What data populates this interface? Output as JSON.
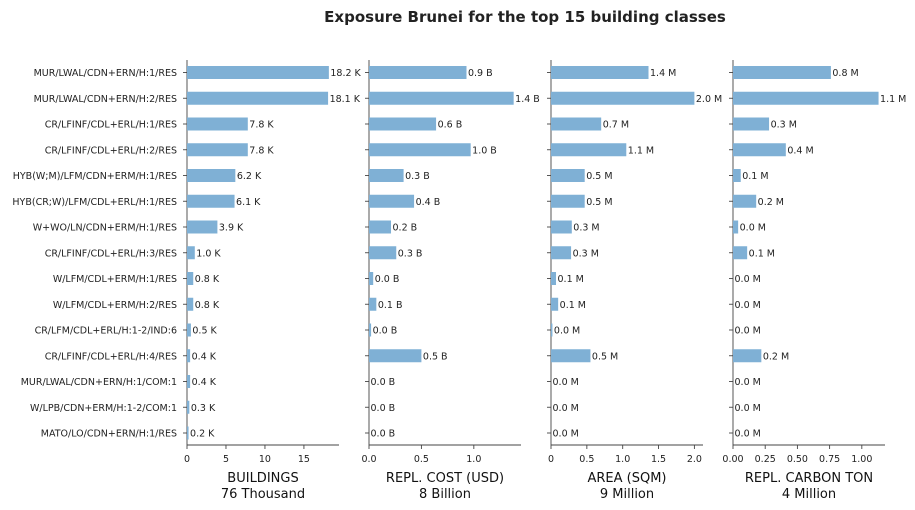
{
  "title": "Exposure Brunei for the top 15 building classes",
  "chart_data": {
    "type": "bar",
    "orientation": "horizontal",
    "title": "Exposure Brunei for the top 15 building classes",
    "categories": [
      "MUR/LWAL/CDN+ERN/H:1/RES",
      "MUR/LWAL/CDN+ERN/H:2/RES",
      "CR/LFINF/CDL+ERL/H:1/RES",
      "CR/LFINF/CDL+ERL/H:2/RES",
      "HYB(W;M)/LFM/CDN+ERM/H:1/RES",
      "HYB(CR;W)/LFM/CDL+ERL/H:1/RES",
      "W+WO/LN/CDN+ERM/H:1/RES",
      "CR/LFINF/CDL+ERL/H:3/RES",
      "W/LFM/CDL+ERM/H:1/RES",
      "W/LFM/CDL+ERM/H:2/RES",
      "CR/LFM/CDL+ERL/H:1-2/IND:6",
      "CR/LFINF/CDL+ERL/H:4/RES",
      "MUR/LWAL/CDN+ERN/H:1/COM:1",
      "W/LPB/CDN+ERM/H:1-2/COM:1",
      "MATO/LO/CDN+ERN/H:1/RES"
    ],
    "color": "#7fb0d5",
    "panels": [
      {
        "xlabel": "BUILDINGS",
        "total": "76 Thousand",
        "unit": "Thousand",
        "xlim": [
          0,
          19.5
        ],
        "ticks": [
          0,
          5,
          10,
          15
        ],
        "tick_labels": [
          "0",
          "5",
          "10",
          "15"
        ],
        "values": [
          18.2,
          18.1,
          7.8,
          7.8,
          6.2,
          6.1,
          3.9,
          1.0,
          0.8,
          0.8,
          0.5,
          0.4,
          0.4,
          0.3,
          0.2
        ],
        "labels": [
          "18.2 K",
          "18.1 K",
          "7.8 K",
          "7.8 K",
          "6.2 K",
          "6.1 K",
          "3.9 K",
          "1.0 K",
          "0.8 K",
          "0.8 K",
          "0.5 K",
          "0.4 K",
          "0.4 K",
          "0.3 K",
          "0.2 K"
        ]
      },
      {
        "xlabel": "REPL. COST (USD)",
        "total": "8 Billion",
        "unit": "Billion",
        "xlim": [
          0,
          1.45
        ],
        "ticks": [
          0,
          0.5,
          1.0
        ],
        "tick_labels": [
          "0.0",
          "0.5",
          "1.0"
        ],
        "values": [
          0.93,
          1.38,
          0.64,
          0.97,
          0.33,
          0.43,
          0.21,
          0.26,
          0.04,
          0.07,
          0.02,
          0.5,
          0.0,
          0.0,
          0.0
        ],
        "labels": [
          "0.9 B",
          "1.4 B",
          "0.6 B",
          "1.0 B",
          "0.3 B",
          "0.4 B",
          "0.2 B",
          "0.3 B",
          "0.0 B",
          "0.1 B",
          "0.0 B",
          "0.5 B",
          "0.0 B",
          "0.0 B",
          "0.0 B"
        ]
      },
      {
        "xlabel": "AREA (SQM)",
        "total": "9 Million",
        "unit": "Million",
        "xlim": [
          0,
          2.12
        ],
        "ticks": [
          0,
          0.5,
          1.0,
          1.5,
          2.0
        ],
        "tick_labels": [
          "0",
          "0.5",
          "1.0",
          "1.5",
          "2.0"
        ],
        "values": [
          1.36,
          2.0,
          0.7,
          1.05,
          0.47,
          0.47,
          0.29,
          0.28,
          0.07,
          0.1,
          0.02,
          0.55,
          0.0,
          0.0,
          0.0
        ],
        "labels": [
          "1.4 M",
          "2.0 M",
          "0.7 M",
          "1.1 M",
          "0.5 M",
          "0.5 M",
          "0.3 M",
          "0.3 M",
          "0.1 M",
          "0.1 M",
          "0.0 M",
          "0.5 M",
          "0.0 M",
          "0.0 M",
          "0.0 M"
        ]
      },
      {
        "xlabel": "REPL. CARBON TON",
        "total": "4 Million",
        "unit": "Million",
        "xlim": [
          0,
          1.18
        ],
        "ticks": [
          0,
          0.25,
          0.5,
          0.75,
          1.0
        ],
        "tick_labels": [
          "0.00",
          "0.25",
          "0.50",
          "0.75",
          "1.00"
        ],
        "values": [
          0.76,
          1.13,
          0.28,
          0.41,
          0.06,
          0.18,
          0.04,
          0.11,
          0.0,
          0.0,
          0.0,
          0.22,
          0.0,
          0.0,
          0.0
        ],
        "labels": [
          "0.8 M",
          "1.1 M",
          "0.3 M",
          "0.4 M",
          "0.1 M",
          "0.2 M",
          "0.0 M",
          "0.1 M",
          "0.0 M",
          "0.0 M",
          "0.0 M",
          "0.2 M",
          "0.0 M",
          "0.0 M",
          "0.0 M"
        ]
      }
    ]
  }
}
